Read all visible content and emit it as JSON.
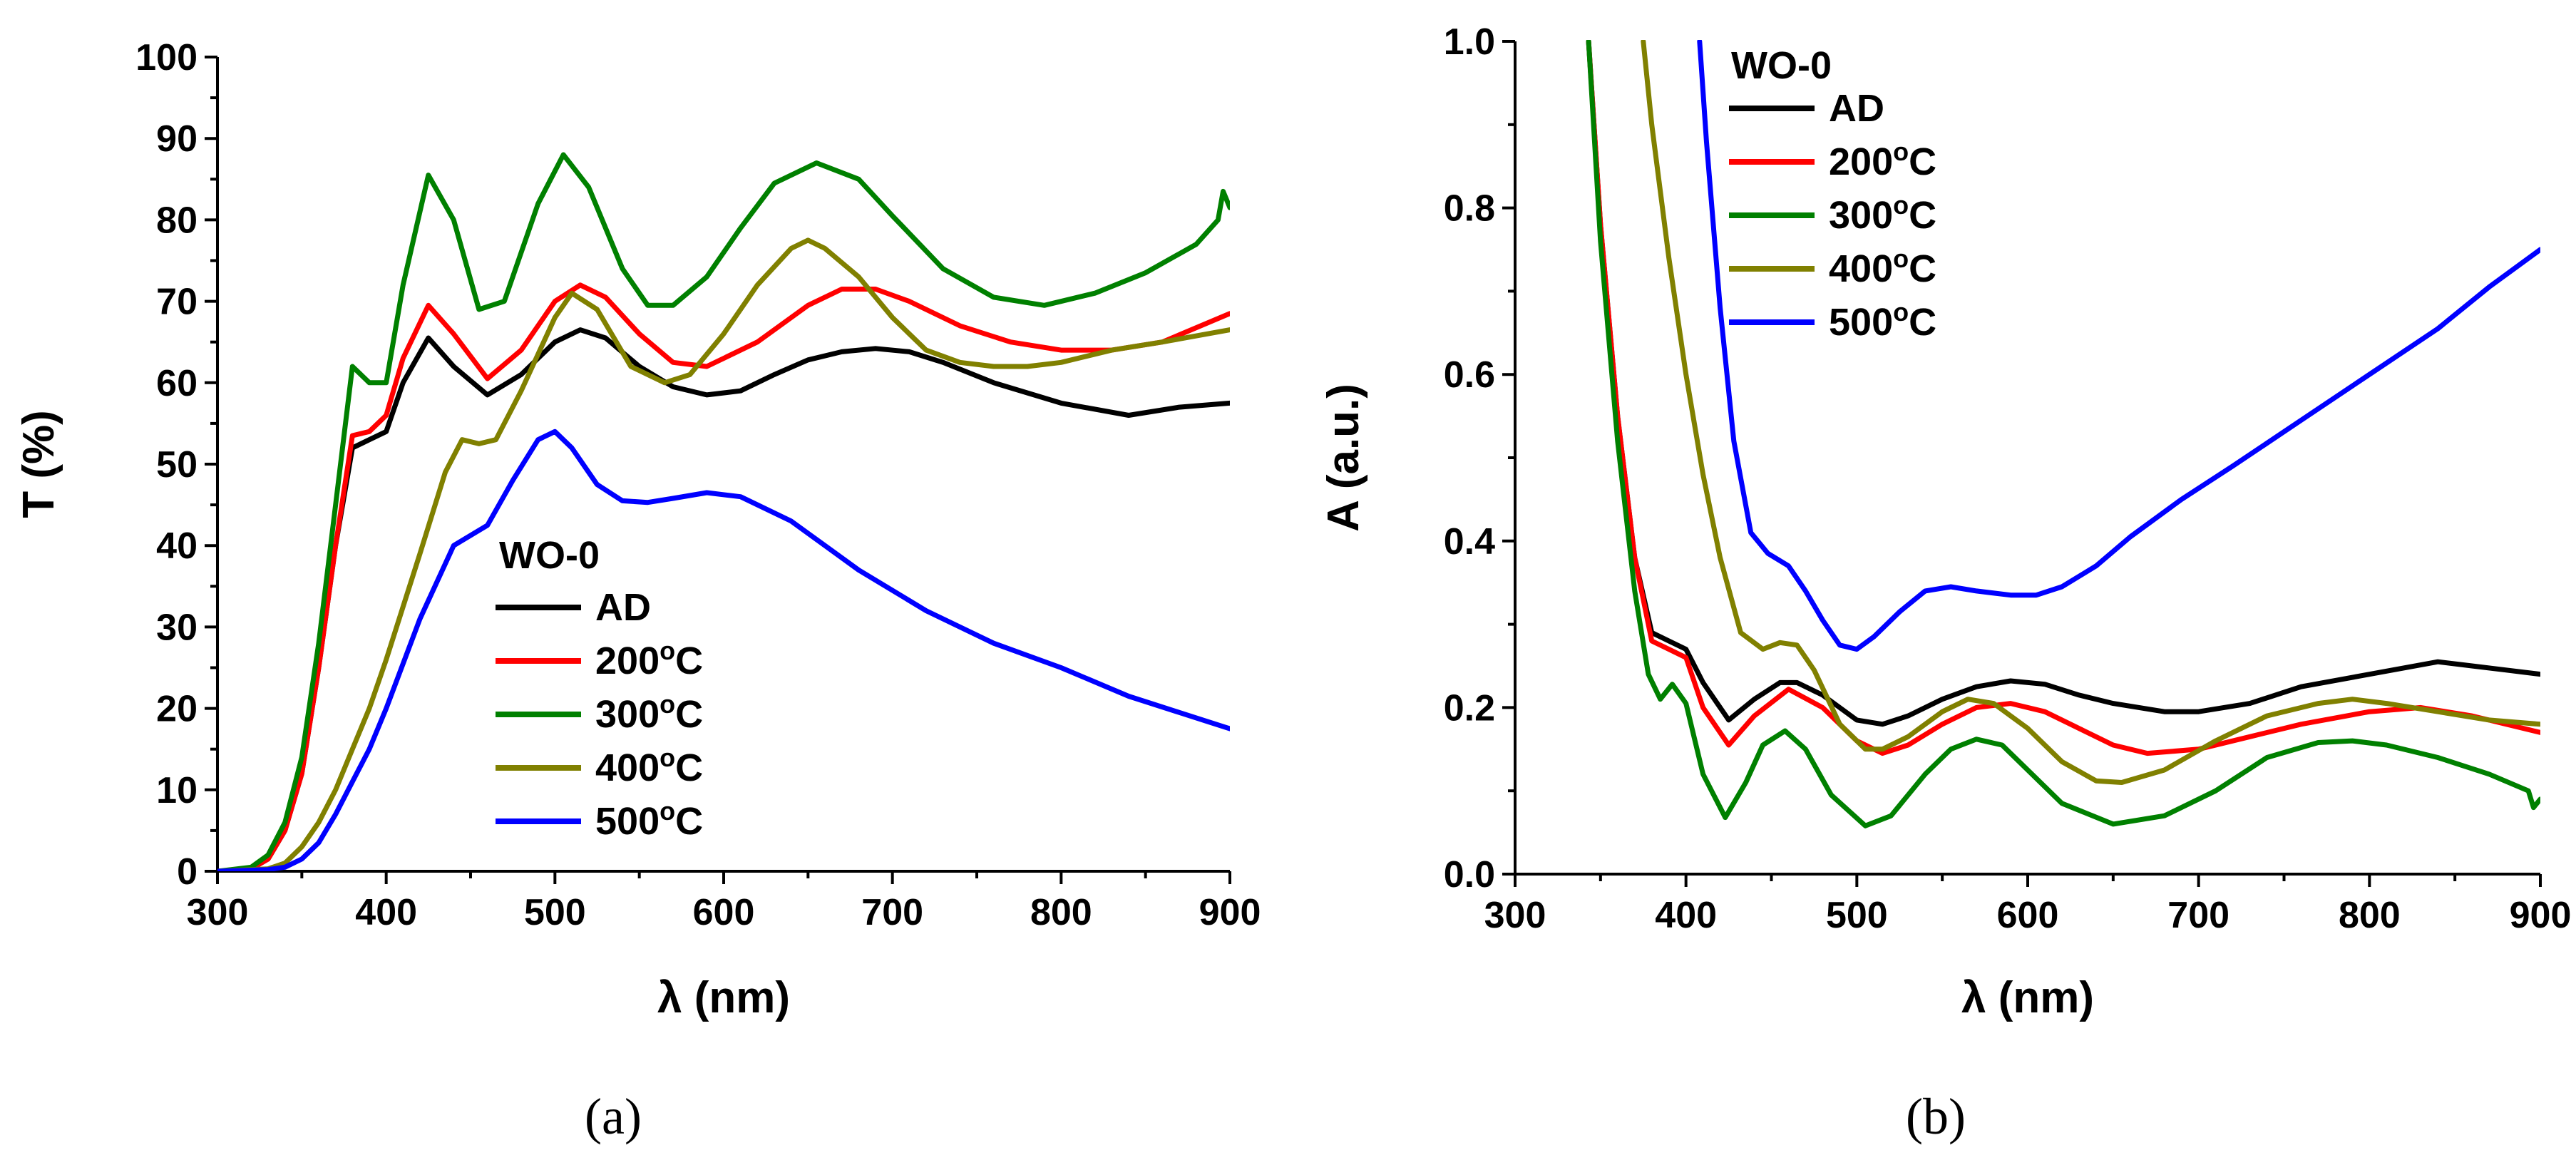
{
  "chart_data": [
    {
      "type": "line",
      "panel": "a",
      "caption": "(a)",
      "xlabel": "λ (nm)",
      "ylabel": "T (%)",
      "xlim": [
        300,
        900
      ],
      "ylim": [
        0,
        100
      ],
      "xticks": [
        300,
        400,
        500,
        600,
        700,
        800,
        900
      ],
      "yticks": [
        0,
        10,
        20,
        30,
        40,
        50,
        60,
        70,
        80,
        90,
        100
      ],
      "legend_title": "WO-0",
      "legend_position": "center",
      "series": [
        {
          "name": "AD",
          "color": "#000000",
          "x": [
            300,
            320,
            330,
            340,
            350,
            360,
            370,
            380,
            390,
            400,
            410,
            425,
            440,
            460,
            480,
            500,
            515,
            530,
            550,
            570,
            590,
            610,
            630,
            650,
            670,
            690,
            710,
            730,
            760,
            800,
            840,
            870,
            900
          ],
          "y": [
            0,
            0.3,
            1.5,
            5,
            12,
            25,
            40,
            52,
            53,
            54,
            60,
            65.5,
            62,
            58.5,
            61,
            65,
            66.5,
            65.5,
            62,
            59.5,
            58.5,
            59,
            61,
            62.8,
            63.8,
            64.2,
            63.8,
            62.5,
            60,
            57.5,
            56,
            57,
            57.5
          ]
        },
        {
          "name": "200ºC",
          "color": "#ff0000",
          "x": [
            300,
            320,
            330,
            340,
            350,
            360,
            370,
            380,
            390,
            400,
            410,
            425,
            440,
            460,
            480,
            500,
            515,
            530,
            550,
            570,
            590,
            620,
            650,
            670,
            690,
            710,
            740,
            770,
            800,
            830,
            860,
            900
          ],
          "y": [
            0,
            0.3,
            1.5,
            5,
            12,
            25,
            40,
            53.5,
            54,
            56,
            63,
            69.5,
            66,
            60.5,
            64,
            70,
            72,
            70.5,
            66,
            62.5,
            62,
            65,
            69.5,
            71.5,
            71.5,
            70,
            67,
            65,
            64,
            64,
            65,
            68.5
          ]
        },
        {
          "name": "300ºC",
          "color": "#008000",
          "x": [
            300,
            320,
            330,
            340,
            350,
            360,
            370,
            380,
            390,
            400,
            410,
            425,
            440,
            455,
            470,
            490,
            505,
            520,
            540,
            555,
            570,
            590,
            610,
            630,
            655,
            680,
            700,
            730,
            760,
            790,
            820,
            850,
            880,
            893,
            896,
            900
          ],
          "y": [
            0,
            0.5,
            2,
            6,
            14,
            28,
            45,
            62,
            60,
            60,
            72,
            85.5,
            80,
            69,
            70,
            82,
            88,
            84,
            74,
            69.5,
            69.5,
            73,
            79,
            84.5,
            87,
            85,
            80.5,
            74,
            70.5,
            69.5,
            71,
            73.5,
            77,
            80,
            83.5,
            81.5
          ]
        },
        {
          "name": "400ºC",
          "color": "#808000",
          "x": [
            300,
            330,
            340,
            350,
            360,
            370,
            380,
            390,
            400,
            420,
            435,
            445,
            455,
            465,
            480,
            500,
            510,
            525,
            545,
            565,
            580,
            600,
            620,
            640,
            650,
            660,
            680,
            700,
            720,
            740,
            760,
            780,
            800,
            830,
            860,
            900
          ],
          "y": [
            0,
            0.3,
            1,
            3,
            6,
            10,
            15,
            20,
            26,
            39,
            49,
            53,
            52.5,
            53,
            59,
            68,
            71,
            69,
            62,
            60,
            61,
            66,
            72,
            76.5,
            77.5,
            76.5,
            73,
            68,
            64,
            62.5,
            62,
            62,
            62.5,
            64,
            65,
            66.5
          ]
        },
        {
          "name": "500ºC",
          "color": "#0000ff",
          "x": [
            300,
            330,
            340,
            350,
            360,
            370,
            380,
            390,
            400,
            420,
            440,
            460,
            475,
            490,
            500,
            510,
            525,
            540,
            555,
            570,
            590,
            610,
            640,
            680,
            720,
            760,
            800,
            840,
            870,
            900
          ],
          "y": [
            0,
            0.2,
            0.5,
            1.5,
            3.5,
            7,
            11,
            15,
            20,
            31,
            40,
            42.5,
            48,
            53,
            54,
            52,
            47.5,
            45.5,
            45.3,
            45.8,
            46.5,
            46,
            43,
            37,
            32,
            28,
            25,
            21.5,
            19.5,
            17.5
          ]
        }
      ]
    },
    {
      "type": "line",
      "panel": "b",
      "caption": "(b)",
      "xlabel": "λ (nm)",
      "ylabel": "A (a.u.)",
      "xlim": [
        300,
        900
      ],
      "ylim": [
        0,
        1.0
      ],
      "xticks": [
        300,
        400,
        500,
        600,
        700,
        800,
        900
      ],
      "yticks": [
        "0.0",
        "0.2",
        "0.4",
        "0.6",
        "0.8",
        "1.0"
      ],
      "legend_title": "WO-0",
      "legend_position": "top-center",
      "series": [
        {
          "name": "AD",
          "color": "#000000",
          "x": [
            343,
            350,
            360,
            370,
            380,
            390,
            400,
            410,
            425,
            440,
            455,
            465,
            480,
            500,
            515,
            530,
            550,
            570,
            590,
            610,
            630,
            650,
            680,
            700,
            730,
            760,
            800,
            840,
            860,
            880,
            900
          ],
          "y": [
            1.0,
            0.78,
            0.55,
            0.38,
            0.29,
            0.28,
            0.27,
            0.23,
            0.185,
            0.21,
            0.23,
            0.23,
            0.215,
            0.185,
            0.18,
            0.19,
            0.21,
            0.225,
            0.232,
            0.228,
            0.215,
            0.205,
            0.195,
            0.195,
            0.205,
            0.225,
            0.24,
            0.255,
            0.25,
            0.245,
            0.24
          ]
        },
        {
          "name": "200ºC",
          "color": "#ff0000",
          "x": [
            343,
            350,
            360,
            370,
            380,
            390,
            400,
            410,
            425,
            440,
            460,
            480,
            500,
            515,
            530,
            550,
            570,
            590,
            610,
            630,
            650,
            670,
            700,
            730,
            760,
            800,
            830,
            860,
            900
          ],
          "y": [
            1.0,
            0.78,
            0.55,
            0.38,
            0.28,
            0.27,
            0.26,
            0.2,
            0.155,
            0.19,
            0.222,
            0.2,
            0.16,
            0.145,
            0.155,
            0.18,
            0.2,
            0.205,
            0.195,
            0.175,
            0.155,
            0.145,
            0.15,
            0.165,
            0.18,
            0.195,
            0.2,
            0.19,
            0.17
          ]
        },
        {
          "name": "300ºC",
          "color": "#008000",
          "x": [
            343,
            350,
            360,
            370,
            378,
            385,
            392,
            400,
            410,
            423,
            435,
            445,
            458,
            470,
            485,
            505,
            520,
            540,
            555,
            570,
            585,
            600,
            620,
            650,
            680,
            710,
            740,
            770,
            790,
            810,
            840,
            870,
            893,
            896,
            900
          ],
          "y": [
            1.0,
            0.76,
            0.52,
            0.34,
            0.24,
            0.21,
            0.228,
            0.205,
            0.12,
            0.068,
            0.11,
            0.155,
            0.172,
            0.15,
            0.095,
            0.058,
            0.07,
            0.12,
            0.15,
            0.162,
            0.155,
            0.125,
            0.085,
            0.06,
            0.07,
            0.1,
            0.14,
            0.158,
            0.16,
            0.155,
            0.14,
            0.12,
            0.1,
            0.08,
            0.09
          ]
        },
        {
          "name": "400ºC",
          "color": "#808000",
          "x": [
            375,
            380,
            390,
            400,
            410,
            420,
            432,
            445,
            455,
            465,
            475,
            490,
            505,
            515,
            530,
            550,
            565,
            580,
            600,
            620,
            640,
            655,
            680,
            710,
            740,
            770,
            790,
            810,
            840,
            870,
            900
          ],
          "y": [
            1.0,
            0.9,
            0.74,
            0.6,
            0.48,
            0.38,
            0.29,
            0.27,
            0.278,
            0.275,
            0.245,
            0.18,
            0.15,
            0.15,
            0.165,
            0.195,
            0.21,
            0.205,
            0.175,
            0.135,
            0.112,
            0.11,
            0.125,
            0.16,
            0.19,
            0.205,
            0.21,
            0.205,
            0.195,
            0.185,
            0.18
          ]
        },
        {
          "name": "500ºC",
          "color": "#0000ff",
          "x": [
            408,
            412,
            420,
            428,
            438,
            448,
            460,
            470,
            480,
            490,
            500,
            510,
            525,
            540,
            555,
            570,
            590,
            605,
            620,
            640,
            660,
            690,
            720,
            760,
            800,
            840,
            870,
            900
          ],
          "y": [
            1.0,
            0.88,
            0.68,
            0.52,
            0.41,
            0.385,
            0.37,
            0.34,
            0.305,
            0.275,
            0.27,
            0.285,
            0.315,
            0.34,
            0.345,
            0.34,
            0.335,
            0.335,
            0.345,
            0.37,
            0.405,
            0.45,
            0.49,
            0.545,
            0.6,
            0.655,
            0.705,
            0.75
          ]
        }
      ]
    }
  ]
}
